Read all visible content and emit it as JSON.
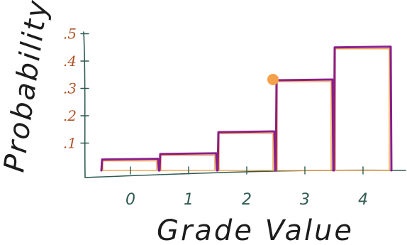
{
  "chart_data": {
    "type": "bar",
    "categories": [
      "0",
      "1",
      "2",
      "3",
      "4"
    ],
    "values": [
      0.04,
      0.06,
      0.14,
      0.33,
      0.45
    ],
    "xlabel": "Grade Value",
    "ylabel": "Probability",
    "y_ticks": [
      0.1,
      0.2,
      0.3,
      0.4,
      0.5
    ],
    "y_tick_labels": [
      ".1",
      ".2",
      ".3",
      ".4",
      ".5"
    ],
    "ylim": [
      0,
      0.55
    ],
    "grid": false,
    "legend": "none",
    "colors": {
      "bar_outline": "#8a1f8a",
      "bar_trace": "#f0a24a",
      "highlight_point": "#f5a04a",
      "axis": "#2f5a52",
      "ytick_text": "#b0542a"
    },
    "highlight": {
      "category": "3",
      "value": 0.33
    }
  }
}
